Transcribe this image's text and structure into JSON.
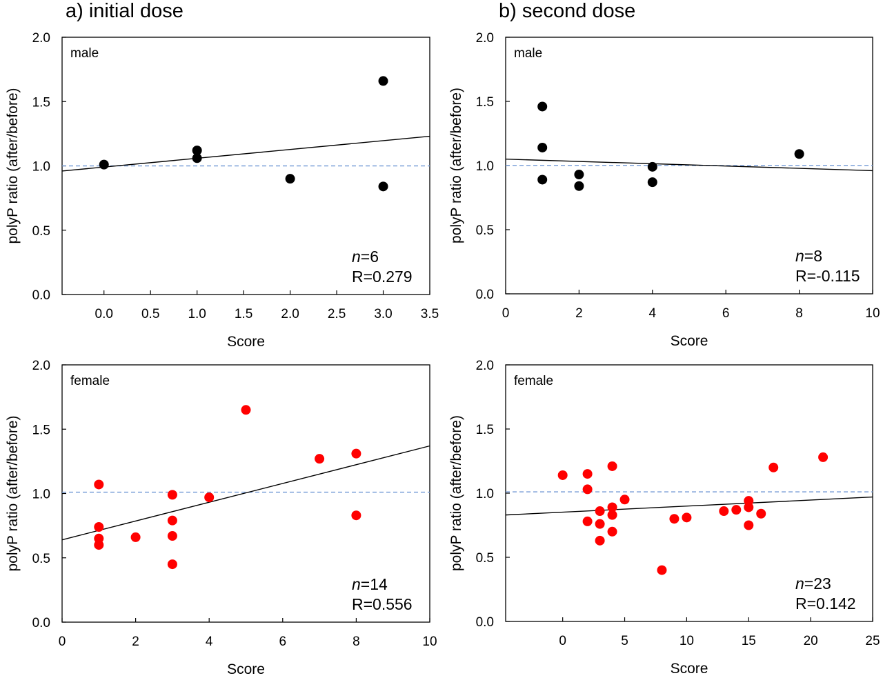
{
  "titles": {
    "left": "a) initial dose",
    "right": "b) second dose"
  },
  "colors": {
    "male_points": "#000000",
    "female_points": "#ff0000",
    "reference_line": "#7a9fd8",
    "fit_line": "#000000"
  },
  "chart_data": [
    {
      "type": "scatter",
      "group": "male",
      "dose": "a) initial dose",
      "xlabel": "Score",
      "ylabel": "polyP ratio (after/before)",
      "xlim": [
        -0.45,
        3.5
      ],
      "ylim": [
        0,
        2.0
      ],
      "xticks": [
        0.0,
        0.5,
        1.0,
        1.5,
        2.0,
        2.5,
        3.0,
        3.5
      ],
      "xtick_labels": [
        "0.0",
        "0.5",
        "1.0",
        "1.5",
        "2.0",
        "2.5",
        "3.0",
        "3.5"
      ],
      "yticks": [
        0,
        0.5,
        1.0,
        1.5,
        2.0
      ],
      "ytick_labels": [
        "0.0",
        "0.5",
        "1.0",
        "1.5",
        "2.0"
      ],
      "point_color": "#000000",
      "points": [
        [
          0,
          1.01
        ],
        [
          1,
          1.12
        ],
        [
          1,
          1.06
        ],
        [
          2,
          0.9
        ],
        [
          3,
          1.66
        ],
        [
          3,
          0.84
        ]
      ],
      "fit_line": [
        [
          -0.45,
          0.96
        ],
        [
          3.5,
          1.23
        ]
      ],
      "reference_y": 1.0,
      "n_label": "=6",
      "r_label": "R=0.279",
      "grid": false
    },
    {
      "type": "scatter",
      "group": "male",
      "dose": "b) second dose",
      "xlabel": "Score",
      "ylabel": "polyP ratio (after/before)",
      "xlim": [
        0,
        10
      ],
      "ylim": [
        0,
        2.0
      ],
      "xticks": [
        0,
        2,
        4,
        6,
        8,
        10
      ],
      "xtick_labels": [
        "0",
        "2",
        "4",
        "6",
        "8",
        "10"
      ],
      "yticks": [
        0,
        0.5,
        1.0,
        1.5,
        2.0
      ],
      "ytick_labels": [
        "0.0",
        "0.5",
        "1.0",
        "1.5",
        "2.0"
      ],
      "point_color": "#000000",
      "points": [
        [
          1,
          1.46
        ],
        [
          1,
          1.14
        ],
        [
          1,
          0.89
        ],
        [
          2,
          0.93
        ],
        [
          2,
          0.84
        ],
        [
          4,
          0.99
        ],
        [
          4,
          0.87
        ],
        [
          8,
          1.09
        ]
      ],
      "fit_line": [
        [
          0,
          1.05
        ],
        [
          10,
          0.96
        ]
      ],
      "reference_y": 1.0,
      "n_label": "=8",
      "r_label": "R=-0.115",
      "grid": false
    },
    {
      "type": "scatter",
      "group": "female",
      "dose": "a) initial dose",
      "xlabel": "Score",
      "ylabel": "polyP ratio (after/before)",
      "xlim": [
        0,
        10
      ],
      "ylim": [
        0,
        2.0
      ],
      "xticks": [
        0,
        2,
        4,
        6,
        8,
        10
      ],
      "xtick_labels": [
        "0",
        "2",
        "4",
        "6",
        "8",
        "10"
      ],
      "yticks": [
        0,
        0.5,
        1.0,
        1.5,
        2.0
      ],
      "ytick_labels": [
        "0.0",
        "0.5",
        "1.0",
        "1.5",
        "2.0"
      ],
      "point_color": "#ff0000",
      "points": [
        [
          1,
          1.07
        ],
        [
          1,
          0.74
        ],
        [
          1,
          0.65
        ],
        [
          1,
          0.6
        ],
        [
          2,
          0.66
        ],
        [
          3,
          0.99
        ],
        [
          3,
          0.79
        ],
        [
          3,
          0.67
        ],
        [
          3,
          0.45
        ],
        [
          4,
          0.97
        ],
        [
          5,
          1.65
        ],
        [
          7,
          1.27
        ],
        [
          8,
          1.31
        ],
        [
          8,
          0.83
        ]
      ],
      "fit_line": [
        [
          0,
          0.64
        ],
        [
          10,
          1.37
        ]
      ],
      "reference_y": 1.01,
      "n_label": "=14",
      "r_label": "R=0.556",
      "grid": false
    },
    {
      "type": "scatter",
      "group": "female",
      "dose": "b) second dose",
      "xlabel": "Score",
      "ylabel": "polyP ratio (after/before)",
      "xlim": [
        -4.6,
        25
      ],
      "ylim": [
        0,
        2.0
      ],
      "xticks": [
        0,
        5,
        10,
        15,
        20,
        25
      ],
      "xtick_labels": [
        "0",
        "5",
        "10",
        "15",
        "20",
        "25"
      ],
      "yticks": [
        0,
        0.5,
        1.0,
        1.5,
        2.0
      ],
      "ytick_labels": [
        "0.0",
        "0.5",
        "1.0",
        "1.5",
        "2.0"
      ],
      "point_color": "#ff0000",
      "points": [
        [
          0,
          1.14
        ],
        [
          2,
          1.15
        ],
        [
          2,
          1.03
        ],
        [
          2,
          0.78
        ],
        [
          3,
          0.86
        ],
        [
          3,
          0.76
        ],
        [
          3,
          0.63
        ],
        [
          4,
          1.21
        ],
        [
          4,
          0.89
        ],
        [
          4,
          0.83
        ],
        [
          4,
          0.7
        ],
        [
          5,
          0.95
        ],
        [
          8,
          0.4
        ],
        [
          9,
          0.8
        ],
        [
          10,
          0.81
        ],
        [
          13,
          0.86
        ],
        [
          14,
          0.87
        ],
        [
          15,
          0.94
        ],
        [
          15,
          0.89
        ],
        [
          15,
          0.75
        ],
        [
          16,
          0.84
        ],
        [
          17,
          1.2
        ],
        [
          21,
          1.28
        ]
      ],
      "fit_line": [
        [
          -4.6,
          0.83
        ],
        [
          25,
          0.97
        ]
      ],
      "reference_y": 1.01,
      "n_label": "=23",
      "r_label": "R=0.142",
      "grid": false
    }
  ]
}
